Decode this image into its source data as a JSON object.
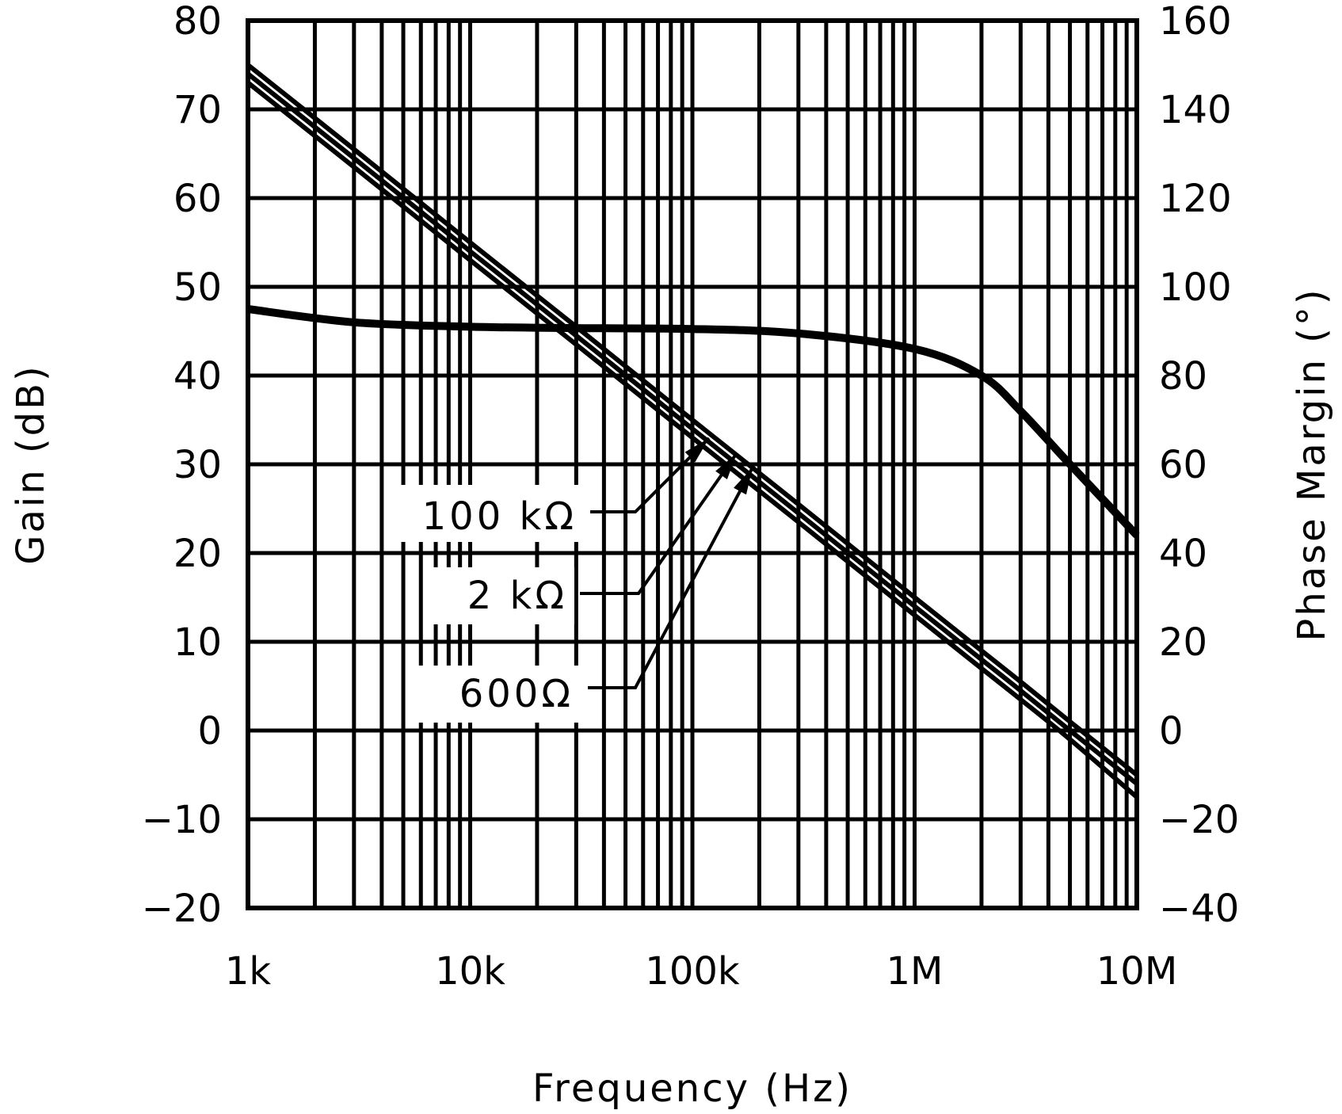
{
  "chart_data": {
    "type": "line",
    "title": "",
    "xlabel": "Frequency (Hz)",
    "ylabel": "Gain (dB)",
    "y2label": "Phase Margin (°)",
    "xscale": "log",
    "xlim": [
      1000,
      10000000
    ],
    "ylim": [
      -20,
      80
    ],
    "y2lim": [
      -40,
      160
    ],
    "grid": true,
    "x_ticks": [
      "1k",
      "10k",
      "100k",
      "1M",
      "10M"
    ],
    "y_ticks": [
      "80",
      "70",
      "60",
      "50",
      "40",
      "30",
      "20",
      "10",
      "0",
      "-10",
      "-20"
    ],
    "y2_ticks": [
      "160",
      "140",
      "120",
      "100",
      "80",
      "60",
      "40",
      "20",
      "0",
      "-20",
      "-40"
    ],
    "x": [
      1000,
      3000,
      10000,
      30000,
      100000,
      300000,
      1000000,
      2000000,
      3000000,
      5000000,
      10000000
    ],
    "series": [
      {
        "name": "100 kΩ",
        "axis": "gain",
        "values": [
          75,
          65.5,
          55,
          45.5,
          35,
          25.5,
          15,
          9,
          5.5,
          1,
          -5
        ]
      },
      {
        "name": "2 kΩ",
        "axis": "gain",
        "values": [
          74,
          64.5,
          54,
          44.5,
          34,
          24.5,
          14,
          8,
          4.5,
          0,
          -6
        ]
      },
      {
        "name": "600Ω",
        "axis": "gain",
        "values": [
          73,
          63.5,
          53,
          43.5,
          33,
          23.5,
          13,
          7,
          3.5,
          -1,
          -7.5
        ]
      },
      {
        "name": "Phase Margin",
        "axis": "phase",
        "values": [
          95,
          92,
          91,
          90.7,
          90.5,
          89.5,
          86,
          80,
          72,
          60,
          44
        ]
      }
    ],
    "annotations": [
      {
        "text": "100 kΩ",
        "points_to": "100 kΩ gain curve near 120 kHz"
      },
      {
        "text": "2 kΩ",
        "points_to": "2 kΩ gain curve near 150 kHz"
      },
      {
        "text": "600Ω",
        "points_to": "600Ω gain curve near 180 kHz"
      }
    ]
  },
  "labels": {
    "x_title": "Frequency (Hz)",
    "y_title": "Gain (dB)",
    "y2_title": "Phase Margin (°)",
    "ann_100k": "100 kΩ",
    "ann_2k": "2 kΩ",
    "ann_600": "600Ω"
  }
}
